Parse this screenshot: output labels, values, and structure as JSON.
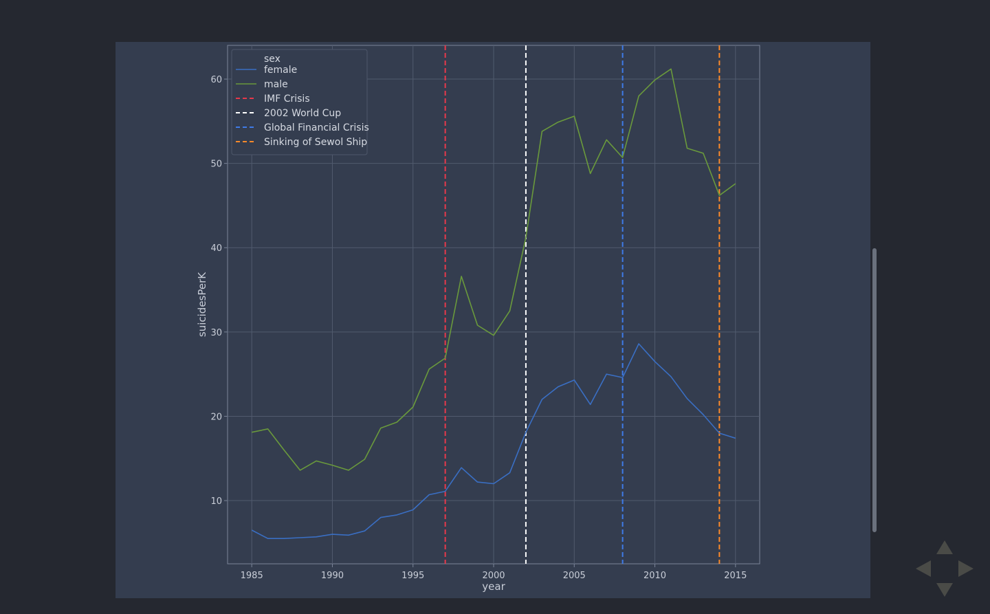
{
  "chart_data": {
    "type": "line",
    "title": "",
    "xlabel": "year",
    "ylabel": "suicidesPerK",
    "xlim": [
      1983.5,
      2016.5
    ],
    "ylim": [
      2.5,
      64
    ],
    "xticks": [
      1985,
      1990,
      1995,
      2000,
      2005,
      2010,
      2015
    ],
    "yticks": [
      10,
      20,
      30,
      40,
      50,
      60
    ],
    "grid": true,
    "legend": {
      "position": "top-left",
      "title": "sex"
    },
    "x": [
      1985,
      1986,
      1987,
      1988,
      1989,
      1990,
      1991,
      1992,
      1993,
      1994,
      1995,
      1996,
      1997,
      1998,
      1999,
      2000,
      2001,
      2002,
      2003,
      2004,
      2005,
      2006,
      2007,
      2008,
      2009,
      2010,
      2011,
      2012,
      2013,
      2014,
      2015
    ],
    "series": [
      {
        "name": "female",
        "color": "#3a6fc4",
        "values": [
          6.5,
          5.5,
          5.5,
          5.6,
          5.7,
          6.0,
          5.9,
          6.4,
          8.0,
          8.3,
          8.9,
          10.7,
          11.1,
          13.9,
          12.2,
          12.0,
          13.3,
          18.1,
          22.0,
          23.5,
          24.3,
          21.4,
          25.0,
          24.6,
          28.6,
          26.5,
          24.7,
          22.1,
          20.2,
          18.0,
          17.4
        ]
      },
      {
        "name": "male",
        "color": "#6a9a3c",
        "values": [
          18.1,
          18.5,
          16.0,
          13.6,
          14.7,
          14.2,
          13.6,
          14.9,
          18.6,
          19.3,
          21.1,
          25.6,
          26.9,
          36.6,
          30.8,
          29.6,
          32.5,
          41.2,
          53.8,
          54.9,
          55.6,
          48.8,
          52.8,
          50.7,
          58.0,
          59.9,
          61.2,
          51.8,
          51.2,
          46.2,
          47.6
        ]
      }
    ],
    "vlines": [
      {
        "name": "IMF Crisis",
        "x": 1997,
        "color": "#e8384a"
      },
      {
        "name": "2002 World Cup",
        "x": 2002,
        "color": "#ffffff"
      },
      {
        "name": "Global Financial Crisis",
        "x": 2008,
        "color": "#3f7be8"
      },
      {
        "name": "Sinking of Sewol Ship",
        "x": 2014,
        "color": "#ff8a2a"
      }
    ]
  }
}
